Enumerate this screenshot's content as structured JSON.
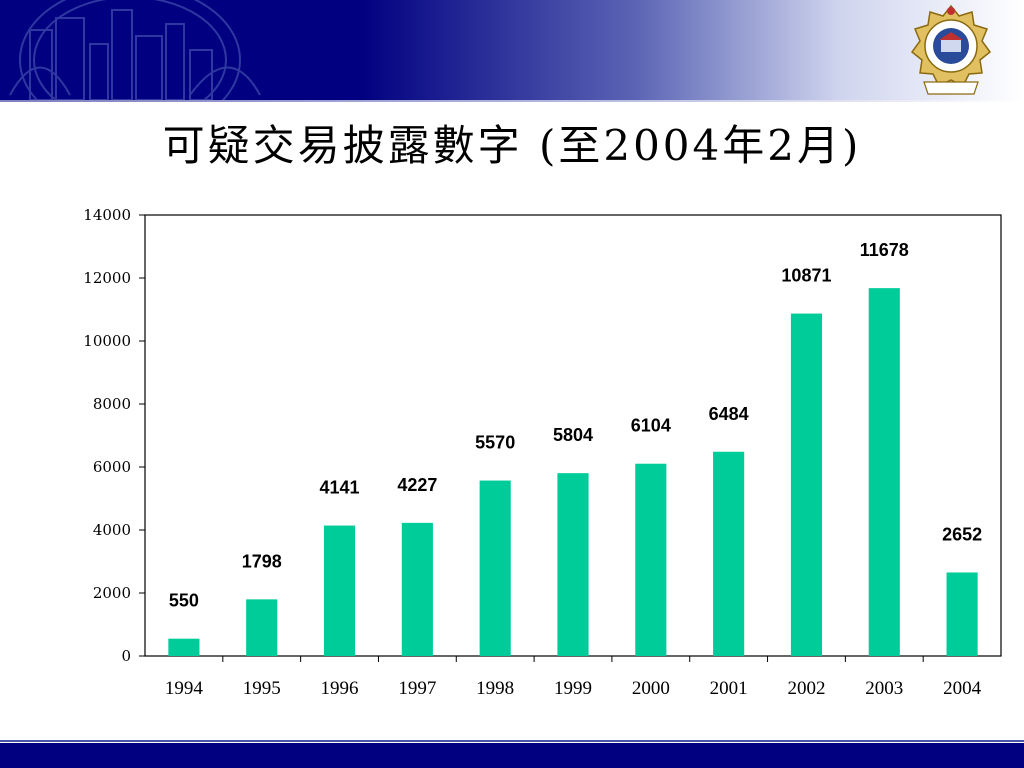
{
  "header": {
    "title": "可疑交易披露數字 (至2004年2月)",
    "banner_color": "#000080",
    "emblem_icon": "hong-kong-police-emblem-icon"
  },
  "chart_data": {
    "type": "bar",
    "title": "",
    "xlabel": "",
    "ylabel": "",
    "categories": [
      "1994",
      "1995",
      "1996",
      "1997",
      "1998",
      "1999",
      "2000",
      "2001",
      "2002",
      "2003",
      "2004"
    ],
    "values": [
      550,
      1798,
      4141,
      4227,
      5570,
      5804,
      6104,
      6484,
      10871,
      11678,
      2652
    ],
    "data_labels": [
      "550",
      "1798",
      "4141",
      "4227",
      "5570",
      "5804",
      "6104",
      "6484",
      "10871",
      "11678",
      "2652"
    ],
    "ylim": [
      0,
      14000
    ],
    "yticks": [
      0,
      2000,
      4000,
      6000,
      8000,
      10000,
      12000,
      14000
    ],
    "ytick_labels": [
      "0",
      "2000",
      "4000",
      "6000",
      "8000",
      "10000",
      "12000",
      "14000"
    ],
    "bar_color": "#00cc99",
    "grid": false,
    "legend": "none"
  }
}
